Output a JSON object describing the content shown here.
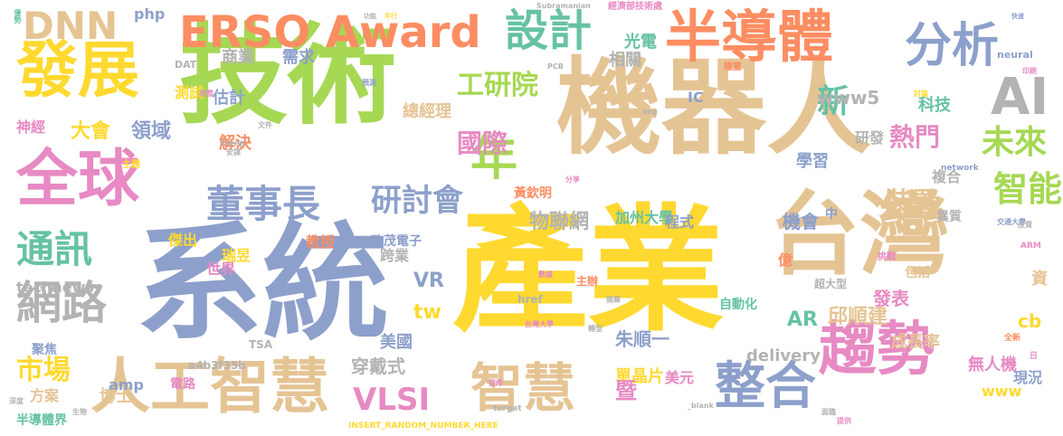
{
  "title": "",
  "palette": {
    "green": "#a6d854",
    "tan": "#e5c494",
    "yellow": "#ffd92f",
    "blue": "#8da0cb",
    "pink": "#e78ac3",
    "orange": "#fc8d62",
    "teal": "#66c2a5",
    "grey": "#b3b3b3"
  },
  "words": [
    {
      "text": "產業",
      "color": "yellow"
    },
    {
      "text": "系統",
      "color": "blue"
    },
    {
      "text": "機器人",
      "color": "tan"
    },
    {
      "text": "技術",
      "color": "green"
    },
    {
      "text": "台灣",
      "color": "tan"
    },
    {
      "text": "全球",
      "color": "pink"
    },
    {
      "text": "發展",
      "color": "yellow"
    },
    {
      "text": "半導體",
      "color": "orange"
    },
    {
      "text": "ERSO Award",
      "color": "orange"
    },
    {
      "text": "設計",
      "color": "teal"
    },
    {
      "text": "分析",
      "color": "blue"
    },
    {
      "text": "DNN",
      "color": "tan"
    },
    {
      "text": "AI",
      "color": "grey"
    },
    {
      "text": "趨勢",
      "color": "pink"
    },
    {
      "text": "人工智慧",
      "color": "tan"
    },
    {
      "text": "智慧",
      "color": "tan"
    },
    {
      "text": "整合",
      "color": "blue"
    },
    {
      "text": "網路",
      "color": "grey"
    },
    {
      "text": "通訊",
      "color": "teal"
    },
    {
      "text": "董事長",
      "color": "blue"
    },
    {
      "text": "年",
      "color": "green"
    },
    {
      "text": "研討會",
      "color": "blue"
    },
    {
      "text": "智能",
      "color": "green"
    },
    {
      "text": "未來",
      "color": "green"
    },
    {
      "text": "VLSI",
      "color": "pink"
    },
    {
      "text": "市場",
      "color": "yellow"
    },
    {
      "text": "工研院",
      "color": "green"
    },
    {
      "text": "國際",
      "color": "pink"
    },
    {
      "text": "新",
      "color": "teal"
    },
    {
      "text": "熱門",
      "color": "pink"
    },
    {
      "text": "物聯網",
      "color": "grey"
    },
    {
      "text": "www5",
      "color": "grey"
    },
    {
      "text": "大會",
      "color": "yellow"
    },
    {
      "text": "領域",
      "color": "blue"
    },
    {
      "text": "相關",
      "color": "grey"
    },
    {
      "text": "光電",
      "color": "teal"
    },
    {
      "text": "商業",
      "color": "grey"
    },
    {
      "text": "需求",
      "color": "blue"
    },
    {
      "text": "估計",
      "color": "blue"
    },
    {
      "text": "總經理",
      "color": "tan"
    },
    {
      "text": "神經",
      "color": "pink"
    },
    {
      "text": "測試",
      "color": "yellow"
    },
    {
      "text": "php",
      "color": "blue"
    },
    {
      "text": "解決",
      "color": "orange"
    },
    {
      "text": "裝置",
      "color": "tan"
    },
    {
      "text": "複合",
      "color": "grey"
    },
    {
      "text": "機會",
      "color": "blue"
    },
    {
      "text": "加州大學",
      "color": "teal"
    },
    {
      "text": "程式",
      "color": "blue"
    },
    {
      "text": "研發",
      "color": "grey"
    },
    {
      "text": "學習",
      "color": "blue"
    },
    {
      "text": "科技",
      "color": "teal"
    },
    {
      "text": "IC",
      "color": "blue"
    },
    {
      "text": "technews",
      "color": "grey"
    },
    {
      "text": "VR",
      "color": "blue"
    },
    {
      "text": "跨業",
      "color": "grey"
    },
    {
      "text": "tw",
      "color": "yellow"
    },
    {
      "text": "美國",
      "color": "blue"
    },
    {
      "text": "穿戴式",
      "color": "grey"
    },
    {
      "text": "朱順一",
      "color": "blue"
    },
    {
      "text": "邱順建",
      "color": "tan"
    },
    {
      "text": "發表",
      "color": "pink"
    },
    {
      "text": "成長率",
      "color": "tan"
    },
    {
      "text": "delivery",
      "color": "grey"
    },
    {
      "text": "AR",
      "color": "teal"
    },
    {
      "text": "無人機",
      "color": "pink"
    },
    {
      "text": "現況",
      "color": "blue"
    },
    {
      "text": "www",
      "color": "yellow"
    },
    {
      "text": "cb",
      "color": "yellow"
    },
    {
      "text": "資",
      "color": "tan"
    },
    {
      "text": "單晶片",
      "color": "yellow"
    },
    {
      "text": "美元",
      "color": "pink"
    },
    {
      "text": "暨",
      "color": "pink"
    },
    {
      "text": "博士",
      "color": "tan"
    },
    {
      "text": "方案",
      "color": "tan"
    },
    {
      "text": "amp",
      "color": "blue"
    },
    {
      "text": "a4b3f35b",
      "color": "grey"
    },
    {
      "text": "世界",
      "color": "pink"
    },
    {
      "text": "瑞昱",
      "color": "yellow"
    },
    {
      "text": "教授",
      "color": "orange"
    },
    {
      "text": "致茂電子",
      "color": "blue"
    },
    {
      "text": "黃欽明",
      "color": "orange"
    },
    {
      "text": "傑出",
      "color": "yellow"
    },
    {
      "text": "億",
      "color": "orange"
    },
    {
      "text": "中",
      "color": "blue"
    },
    {
      "text": "異質",
      "color": "grey"
    },
    {
      "text": "包括",
      "color": "tan"
    },
    {
      "text": "主辦",
      "color": "orange"
    },
    {
      "text": "自動化",
      "color": "teal"
    },
    {
      "text": "超大型",
      "color": "grey"
    },
    {
      "text": "聚焦",
      "color": "blue"
    },
    {
      "text": "電路",
      "color": "pink"
    },
    {
      "text": "半導體界",
      "color": "teal"
    },
    {
      "text": "INSERT_RANDOM_NUMBER_HERE",
      "color": "yellow"
    },
    {
      "text": "經濟部技術處",
      "color": "pink"
    },
    {
      "text": "Subramanian",
      "color": "grey"
    },
    {
      "text": "network",
      "color": "blue"
    },
    {
      "text": "href",
      "color": "grey"
    },
    {
      "text": "target",
      "color": "grey"
    },
    {
      "text": "_blank",
      "color": "grey"
    },
    {
      "text": "DAT",
      "color": "grey"
    },
    {
      "text": "Deep",
      "color": "grey"
    },
    {
      "text": "TSA",
      "color": "grey"
    },
    {
      "text": "PCB",
      "color": "grey"
    },
    {
      "text": "img",
      "color": "grey"
    },
    {
      "text": "ARM",
      "color": "pink"
    },
    {
      "text": "neural",
      "color": "blue"
    },
    {
      "text": "優勢",
      "color": "teal"
    },
    {
      "text": "主題",
      "color": "yellow"
    },
    {
      "text": "深度",
      "color": "grey"
    },
    {
      "text": "生物",
      "color": "grey"
    },
    {
      "text": "提供",
      "color": "pink"
    },
    {
      "text": "面臨",
      "color": "grey"
    },
    {
      "text": "隆重",
      "color": "orange"
    },
    {
      "text": "印刷",
      "color": "pink"
    },
    {
      "text": "挑戰",
      "color": "pink"
    },
    {
      "text": "功能",
      "color": "grey"
    },
    {
      "text": "平行",
      "color": "yellow"
    },
    {
      "text": "快速",
      "color": "blue"
    },
    {
      "text": "完整",
      "color": "pink"
    },
    {
      "text": "討論",
      "color": "yellow"
    },
    {
      "text": "分享",
      "color": "pink"
    },
    {
      "text": "預測",
      "color": "blue"
    },
    {
      "text": "文件",
      "color": "grey"
    },
    {
      "text": "數據",
      "color": "pink"
    },
    {
      "text": "轉型",
      "color": "grey"
    },
    {
      "text": "全新",
      "color": "orange"
    },
    {
      "text": "日",
      "color": "pink"
    },
    {
      "text": "交通大學",
      "color": "blue"
    },
    {
      "text": "台灣大學",
      "color": "pink"
    },
    {
      "text": "開幕",
      "color": "grey"
    },
    {
      "text": "發佈",
      "color": "pink"
    },
    {
      "text": "安謀",
      "color": "grey"
    },
    {
      "text": "投資",
      "color": "grey"
    }
  ]
}
